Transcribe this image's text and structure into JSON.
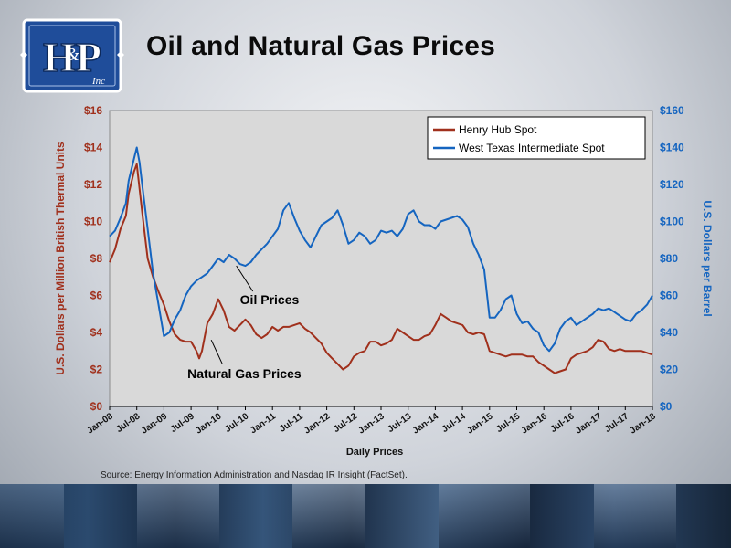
{
  "slide": {
    "title": "Oil and Natural Gas Prices",
    "source": "Source:  Energy Information Administration and Nasdaq IR Insight (FactSet).",
    "logo_text": "H&P Inc"
  },
  "colors": {
    "gas": "#a0301c",
    "oil": "#1565c0",
    "left_axis": "#a0301c",
    "right_axis": "#1565c0"
  },
  "chart_data": {
    "type": "line",
    "xlabel": "Daily Prices",
    "ylabel_left": "U.S. Dollars per Million British Thermal Units",
    "ylabel_right": "U.S. Dollars per Barrel",
    "ylim_left": [
      0,
      16
    ],
    "ylim_right": [
      0,
      160
    ],
    "y_ticks_left": [
      "$0",
      "$2",
      "$4",
      "$6",
      "$8",
      "$10",
      "$12",
      "$14",
      "$16"
    ],
    "y_ticks_right": [
      "$0",
      "$20",
      "$40",
      "$60",
      "$80",
      "$100",
      "$120",
      "$140",
      "$160"
    ],
    "x_ticks": [
      "Jan-08",
      "Jul-08",
      "Jan-09",
      "Jul-09",
      "Jan-10",
      "Jul-10",
      "Jan-11",
      "Jul-11",
      "Jan-12",
      "Jul-12",
      "Jan-13",
      "Jul-13",
      "Jan-14",
      "Jul-14",
      "Jan-15",
      "Jul-15",
      "Jan-16",
      "Jul-16",
      "Jan-17",
      "Jul-17",
      "Jan-18"
    ],
    "legend_position": "top-right",
    "series": [
      {
        "name": "Henry Hub Spot",
        "axis": "left",
        "x": [
          2008.0,
          2008.1,
          2008.2,
          2008.3,
          2008.35,
          2008.45,
          2008.5,
          2008.6,
          2008.7,
          2008.8,
          2008.9,
          2009.0,
          2009.1,
          2009.2,
          2009.3,
          2009.4,
          2009.5,
          2009.6,
          2009.65,
          2009.7,
          2009.8,
          2009.9,
          2010.0,
          2010.1,
          2010.2,
          2010.3,
          2010.4,
          2010.5,
          2010.6,
          2010.7,
          2010.8,
          2010.9,
          2011.0,
          2011.1,
          2011.2,
          2011.3,
          2011.4,
          2011.5,
          2011.6,
          2011.7,
          2011.8,
          2011.9,
          2012.0,
          2012.1,
          2012.2,
          2012.3,
          2012.4,
          2012.5,
          2012.6,
          2012.7,
          2012.8,
          2012.9,
          2013.0,
          2013.1,
          2013.2,
          2013.3,
          2013.4,
          2013.5,
          2013.6,
          2013.7,
          2013.8,
          2013.9,
          2014.0,
          2014.1,
          2014.2,
          2014.3,
          2014.4,
          2014.5,
          2014.6,
          2014.7,
          2014.8,
          2014.9,
          2015.0,
          2015.1,
          2015.2,
          2015.3,
          2015.4,
          2015.5,
          2015.6,
          2015.7,
          2015.8,
          2015.9,
          2016.0,
          2016.1,
          2016.2,
          2016.3,
          2016.4,
          2016.5,
          2016.6,
          2016.7,
          2016.8,
          2016.9,
          2017.0,
          2017.1,
          2017.2,
          2017.3,
          2017.4,
          2017.5,
          2017.6,
          2017.7,
          2017.8,
          2017.9,
          2018.0
        ],
        "values": [
          7.8,
          8.5,
          9.6,
          10.3,
          11.5,
          12.7,
          13.1,
          10.5,
          8.0,
          7.0,
          6.2,
          5.5,
          4.6,
          3.9,
          3.6,
          3.5,
          3.5,
          3.0,
          2.6,
          3.0,
          4.5,
          5.0,
          5.8,
          5.2,
          4.3,
          4.1,
          4.4,
          4.7,
          4.4,
          3.9,
          3.7,
          3.9,
          4.3,
          4.1,
          4.3,
          4.3,
          4.4,
          4.5,
          4.2,
          4.0,
          3.7,
          3.4,
          2.9,
          2.6,
          2.3,
          2.0,
          2.2,
          2.7,
          2.9,
          3.0,
          3.5,
          3.5,
          3.3,
          3.4,
          3.6,
          4.2,
          4.0,
          3.8,
          3.6,
          3.6,
          3.8,
          3.9,
          4.4,
          5.0,
          4.8,
          4.6,
          4.5,
          4.4,
          4.0,
          3.9,
          4.0,
          3.9,
          3.0,
          2.9,
          2.8,
          2.7,
          2.8,
          2.8,
          2.8,
          2.7,
          2.7,
          2.4,
          2.2,
          2.0,
          1.8,
          1.9,
          2.0,
          2.6,
          2.8,
          2.9,
          3.0,
          3.2,
          3.6,
          3.5,
          3.1,
          3.0,
          3.1,
          3.0,
          3.0,
          3.0,
          3.0,
          2.9,
          2.8
        ]
      },
      {
        "name": "West Texas Intermediate Spot",
        "axis": "right",
        "x": [
          2008.0,
          2008.1,
          2008.2,
          2008.3,
          2008.35,
          2008.45,
          2008.5,
          2008.55,
          2008.6,
          2008.7,
          2008.8,
          2008.9,
          2009.0,
          2009.1,
          2009.2,
          2009.3,
          2009.4,
          2009.5,
          2009.6,
          2009.7,
          2009.8,
          2009.9,
          2010.0,
          2010.1,
          2010.2,
          2010.3,
          2010.4,
          2010.5,
          2010.6,
          2010.7,
          2010.8,
          2010.9,
          2011.0,
          2011.1,
          2011.2,
          2011.3,
          2011.4,
          2011.5,
          2011.6,
          2011.7,
          2011.8,
          2011.9,
          2012.0,
          2012.1,
          2012.2,
          2012.3,
          2012.4,
          2012.5,
          2012.6,
          2012.7,
          2012.8,
          2012.9,
          2013.0,
          2013.1,
          2013.2,
          2013.3,
          2013.4,
          2013.5,
          2013.6,
          2013.7,
          2013.8,
          2013.9,
          2014.0,
          2014.1,
          2014.2,
          2014.3,
          2014.4,
          2014.5,
          2014.6,
          2014.7,
          2014.8,
          2014.9,
          2015.0,
          2015.1,
          2015.2,
          2015.3,
          2015.4,
          2015.5,
          2015.6,
          2015.7,
          2015.8,
          2015.9,
          2016.0,
          2016.1,
          2016.2,
          2016.3,
          2016.4,
          2016.5,
          2016.6,
          2016.7,
          2016.8,
          2016.9,
          2017.0,
          2017.1,
          2017.2,
          2017.3,
          2017.4,
          2017.5,
          2017.6,
          2017.7,
          2017.8,
          2017.9,
          2018.0
        ],
        "values": [
          92,
          95,
          102,
          110,
          122,
          134,
          140,
          132,
          120,
          96,
          72,
          55,
          38,
          40,
          47,
          52,
          60,
          65,
          68,
          70,
          72,
          76,
          80,
          78,
          82,
          80,
          77,
          76,
          78,
          82,
          85,
          88,
          92,
          96,
          106,
          110,
          102,
          95,
          90,
          86,
          92,
          98,
          100,
          102,
          106,
          98,
          88,
          90,
          94,
          92,
          88,
          90,
          95,
          94,
          95,
          92,
          96,
          104,
          106,
          100,
          98,
          98,
          96,
          100,
          101,
          102,
          103,
          101,
          97,
          88,
          82,
          74,
          48,
          48,
          52,
          58,
          60,
          50,
          45,
          46,
          42,
          40,
          33,
          30,
          34,
          42,
          46,
          48,
          44,
          46,
          48,
          50,
          53,
          52,
          53,
          51,
          49,
          47,
          46,
          50,
          52,
          55,
          60
        ]
      }
    ],
    "annotations": [
      {
        "text": "Oil Prices",
        "x": 2010.2,
        "y_right": 81
      },
      {
        "text": "Natural Gas Prices",
        "x": 2009.4,
        "y_left": 3.4
      }
    ]
  }
}
